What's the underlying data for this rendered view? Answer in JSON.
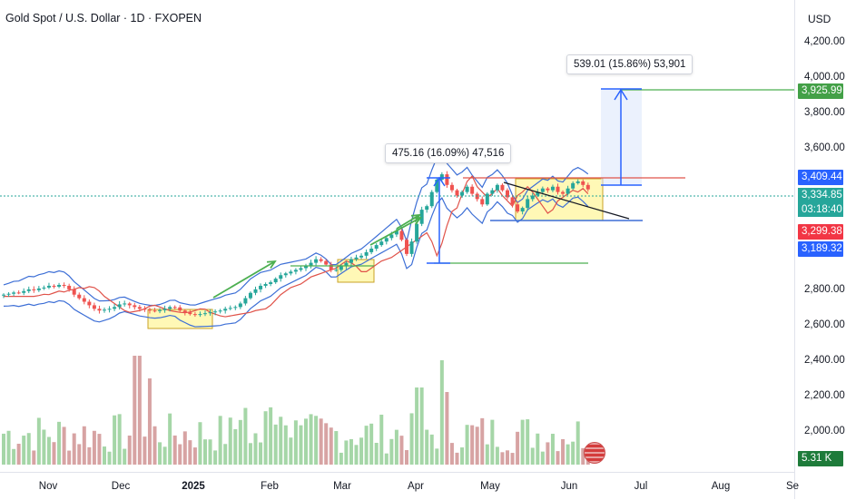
{
  "header": {
    "title": "Gold Spot / U.S. Dollar · 1D · FXOPEN"
  },
  "price_axis": {
    "currency": "USD",
    "ticks": [
      "4,200.00",
      "4,000.00",
      "3,800.00",
      "3,600.00",
      "2,800.00",
      "2,600.00",
      "2,400.00",
      "2,200.00",
      "2,000.00"
    ],
    "badges": {
      "target": {
        "value": "3,925.99",
        "color": "#43a047"
      },
      "high": {
        "value": "3,409.44",
        "color": "#2962ff"
      },
      "last": {
        "value": "3,334.85",
        "color": "#26a69a"
      },
      "countdown": {
        "value": "03:18:40",
        "color": "#26a69a"
      },
      "ma": {
        "value": "3,299.38",
        "color": "#f23645"
      },
      "low": {
        "value": "3,189.32",
        "color": "#2962ff"
      },
      "volume": {
        "value": "5.31 K",
        "color": "#1e7b3a"
      }
    }
  },
  "time_axis": {
    "ticks": [
      "Nov",
      "Dec",
      "2025",
      "Feb",
      "Mar",
      "Apr",
      "May",
      "Jun",
      "Jul",
      "Aug",
      "Se"
    ]
  },
  "annotations": {
    "measure1": "475.16 (16.09%) 47,516",
    "measure2": "539.01 (15.86%) 53,901"
  },
  "colors": {
    "up": "#26a69a",
    "down": "#ef5350",
    "band": "#3d6fd6",
    "ma": "#e0534a",
    "arrow": "#4caf50",
    "zone": "#fff59d",
    "trend": "#131722"
  },
  "chart_data": {
    "type": "candlestick",
    "symbol": "Gold Spot / U.S. Dollar",
    "interval": "1D",
    "x_ticks": [
      "Nov",
      "Dec",
      "2025",
      "Feb",
      "Mar",
      "Apr",
      "May",
      "Jun",
      "Jul",
      "Aug",
      "Se"
    ],
    "y_ticks": [
      4200,
      4000,
      3800,
      3600,
      2800,
      2600,
      2400,
      2200,
      2000
    ],
    "last_price": 3334.85,
    "levels": {
      "target": 3925.99,
      "resistance": 3409.44,
      "support": 3189.32,
      "ma": 3299.38
    },
    "measures": [
      {
        "text": "475.16 (16.09%) 47,516",
        "change": 475.16,
        "percent": 16.09
      },
      {
        "text": "539.01 (15.86%) 53,901",
        "change": 539.01,
        "percent": 15.86
      }
    ],
    "volume_last": "5.31 K",
    "price_path": [
      [
        0,
        2740
      ],
      [
        1,
        2745
      ],
      [
        2,
        2752
      ],
      [
        3,
        2750
      ],
      [
        4,
        2760
      ],
      [
        5,
        2770
      ],
      [
        6,
        2765
      ],
      [
        7,
        2775
      ],
      [
        8,
        2780
      ],
      [
        9,
        2790
      ],
      [
        10,
        2785
      ],
      [
        11,
        2795
      ],
      [
        12,
        2790
      ],
      [
        13,
        2770
      ],
      [
        14,
        2740
      ],
      [
        15,
        2720
      ],
      [
        16,
        2700
      ],
      [
        17,
        2680
      ],
      [
        18,
        2660
      ],
      [
        19,
        2650
      ],
      [
        20,
        2655
      ],
      [
        21,
        2660
      ],
      [
        22,
        2670
      ],
      [
        23,
        2685
      ],
      [
        24,
        2690
      ],
      [
        25,
        2680
      ],
      [
        26,
        2670
      ],
      [
        27,
        2660
      ],
      [
        28,
        2655
      ],
      [
        29,
        2650
      ],
      [
        30,
        2648
      ],
      [
        31,
        2652
      ],
      [
        32,
        2660
      ],
      [
        33,
        2670
      ],
      [
        34,
        2668
      ],
      [
        35,
        2650
      ],
      [
        36,
        2640
      ],
      [
        37,
        2630
      ],
      [
        38,
        2625
      ],
      [
        39,
        2630
      ],
      [
        40,
        2635
      ],
      [
        41,
        2640
      ],
      [
        42,
        2645
      ],
      [
        43,
        2650
      ],
      [
        44,
        2660
      ],
      [
        45,
        2665
      ],
      [
        46,
        2670
      ],
      [
        47,
        2690
      ],
      [
        48,
        2720
      ],
      [
        49,
        2750
      ],
      [
        50,
        2770
      ],
      [
        51,
        2790
      ],
      [
        52,
        2800
      ],
      [
        53,
        2810
      ],
      [
        54,
        2830
      ],
      [
        55,
        2850
      ],
      [
        56,
        2860
      ],
      [
        57,
        2870
      ],
      [
        58,
        2880
      ],
      [
        59,
        2890
      ],
      [
        60,
        2900
      ],
      [
        61,
        2920
      ],
      [
        62,
        2940
      ],
      [
        63,
        2930
      ],
      [
        64,
        2910
      ],
      [
        65,
        2880
      ],
      [
        66,
        2880
      ],
      [
        67,
        2900
      ],
      [
        68,
        2920
      ],
      [
        69,
        2940
      ],
      [
        70,
        2950
      ],
      [
        71,
        2960
      ],
      [
        72,
        2980
      ],
      [
        73,
        3000
      ],
      [
        74,
        3020
      ],
      [
        75,
        3040
      ],
      [
        76,
        3060
      ],
      [
        77,
        3080
      ],
      [
        78,
        3100
      ],
      [
        79,
        3050
      ],
      [
        80,
        2970
      ],
      [
        81,
        3040
      ],
      [
        82,
        3140
      ],
      [
        83,
        3220
      ],
      [
        84,
        3240
      ],
      [
        85,
        3320
      ],
      [
        86,
        3390
      ],
      [
        87,
        3420
      ],
      [
        88,
        3360
      ],
      [
        89,
        3330
      ],
      [
        90,
        3300
      ],
      [
        91,
        3320
      ],
      [
        92,
        3350
      ],
      [
        93,
        3310
      ],
      [
        94,
        3280
      ],
      [
        95,
        3250
      ],
      [
        96,
        3310
      ],
      [
        97,
        3330
      ],
      [
        98,
        3360
      ],
      [
        99,
        3330
      ],
      [
        100,
        3290
      ],
      [
        101,
        3250
      ],
      [
        102,
        3210
      ],
      [
        103,
        3230
      ],
      [
        104,
        3280
      ],
      [
        105,
        3300
      ],
      [
        106,
        3320
      ],
      [
        107,
        3340
      ],
      [
        108,
        3330
      ],
      [
        109,
        3350
      ],
      [
        110,
        3320
      ],
      [
        111,
        3310
      ],
      [
        112,
        3340
      ],
      [
        113,
        3370
      ],
      [
        114,
        3380
      ],
      [
        115,
        3360
      ],
      [
        116,
        3335
      ]
    ]
  }
}
